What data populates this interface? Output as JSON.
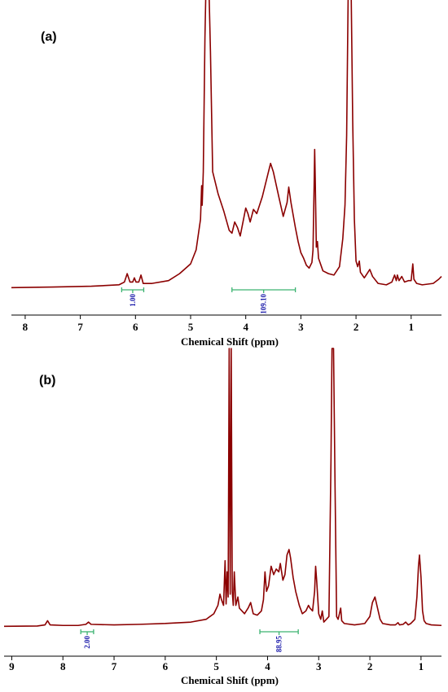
{
  "colors": {
    "spectrum": "#8b0000",
    "integration_bar": "#3cb371",
    "integration_text": "#1a1aaa",
    "axis": "#000000"
  },
  "chart_data": [
    {
      "type": "line",
      "panel_label": "(a)",
      "xlabel": "Chemical Shift (ppm)",
      "ylabel": "",
      "x_reversed": true,
      "xlim": [
        8.25,
        0.45
      ],
      "ylim": [
        0,
        100
      ],
      "tick_values": [
        8,
        7,
        6,
        5,
        4,
        3,
        2,
        1
      ],
      "tick_labels": [
        "8",
        "7",
        "6",
        "5",
        "4",
        "3",
        "2",
        "1"
      ],
      "integrations": [
        {
          "from": 6.25,
          "to": 5.85,
          "label": "1.00"
        },
        {
          "from": 4.25,
          "to": 3.1,
          "label": "109.10"
        }
      ],
      "series": [
        {
          "points": [
            [
              8.25,
              0.5
            ],
            [
              7.5,
              0.7
            ],
            [
              6.8,
              1.0
            ],
            [
              6.3,
              1.5
            ],
            [
              6.2,
              2.5
            ],
            [
              6.15,
              5.5
            ],
            [
              6.1,
              2.5
            ],
            [
              6.05,
              2.5
            ],
            [
              6.02,
              4.0
            ],
            [
              5.99,
              2.5
            ],
            [
              5.94,
              2.5
            ],
            [
              5.9,
              5.0
            ],
            [
              5.86,
              2.0
            ],
            [
              5.7,
              2.0
            ],
            [
              5.4,
              3.0
            ],
            [
              5.2,
              5.5
            ],
            [
              5.0,
              9.0
            ],
            [
              4.9,
              14.0
            ],
            [
              4.82,
              25.0
            ],
            [
              4.8,
              37.0
            ],
            [
              4.79,
              30.0
            ],
            [
              4.77,
              42.0
            ],
            [
              4.74,
              90.0
            ],
            [
              4.72,
              110.0
            ],
            [
              4.67,
              110.0
            ],
            [
              4.64,
              85.0
            ],
            [
              4.6,
              42.0
            ],
            [
              4.5,
              34.0
            ],
            [
              4.4,
              28.0
            ],
            [
              4.3,
              21.0
            ],
            [
              4.25,
              20.0
            ],
            [
              4.2,
              24.0
            ],
            [
              4.15,
              22.0
            ],
            [
              4.1,
              19.0
            ],
            [
              4.05,
              24.0
            ],
            [
              4.0,
              29.0
            ],
            [
              3.96,
              27.0
            ],
            [
              3.92,
              24.0
            ],
            [
              3.86,
              28.5
            ],
            [
              3.8,
              27.0
            ],
            [
              3.7,
              33.0
            ],
            [
              3.6,
              41.0
            ],
            [
              3.55,
              45.0
            ],
            [
              3.5,
              42.0
            ],
            [
              3.4,
              33.0
            ],
            [
              3.32,
              26.0
            ],
            [
              3.25,
              31.0
            ],
            [
              3.22,
              36.5
            ],
            [
              3.18,
              31.0
            ],
            [
              3.1,
              22.0
            ],
            [
              3.05,
              17.0
            ],
            [
              3.0,
              13.0
            ],
            [
              2.95,
              11.0
            ],
            [
              2.9,
              8.5
            ],
            [
              2.85,
              7.5
            ],
            [
              2.8,
              9.5
            ],
            [
              2.78,
              14.0
            ],
            [
              2.76,
              37.0
            ],
            [
              2.75,
              50.0
            ],
            [
              2.74,
              40.0
            ],
            [
              2.72,
              15.0
            ],
            [
              2.7,
              17.0
            ],
            [
              2.68,
              11.0
            ],
            [
              2.6,
              6.5
            ],
            [
              2.5,
              5.5
            ],
            [
              2.4,
              5.0
            ],
            [
              2.3,
              8.0
            ],
            [
              2.27,
              13.0
            ],
            [
              2.24,
              18.0
            ],
            [
              2.2,
              30.0
            ],
            [
              2.17,
              55.0
            ],
            [
              2.14,
              110.0
            ],
            [
              2.09,
              110.0
            ],
            [
              2.06,
              60.0
            ],
            [
              2.03,
              25.0
            ],
            [
              2.0,
              10.0
            ],
            [
              1.97,
              8.0
            ],
            [
              1.94,
              10.0
            ],
            [
              1.92,
              6.0
            ],
            [
              1.85,
              4.0
            ],
            [
              1.8,
              5.5
            ],
            [
              1.75,
              7.0
            ],
            [
              1.7,
              4.5
            ],
            [
              1.6,
              2.0
            ],
            [
              1.45,
              1.5
            ],
            [
              1.35,
              2.5
            ],
            [
              1.3,
              5.0
            ],
            [
              1.27,
              3.0
            ],
            [
              1.25,
              5.0
            ],
            [
              1.22,
              3.0
            ],
            [
              1.17,
              4.5
            ],
            [
              1.12,
              2.5
            ],
            [
              1.05,
              3.0
            ],
            [
              1.0,
              3.0
            ],
            [
              0.97,
              9.0
            ],
            [
              0.95,
              3.5
            ],
            [
              0.9,
              2.0
            ],
            [
              0.8,
              1.5
            ],
            [
              0.6,
              2.0
            ],
            [
              0.5,
              3.5
            ],
            [
              0.45,
              4.5
            ]
          ]
        }
      ]
    },
    {
      "type": "line",
      "panel_label": "(b)",
      "xlabel": "Chemical Shift (ppm)",
      "ylabel": "",
      "x_reversed": true,
      "xlim": [
        9.15,
        0.6
      ],
      "ylim": [
        0,
        100
      ],
      "tick_values": [
        9,
        8,
        7,
        6,
        5,
        4,
        3,
        2,
        1
      ],
      "tick_labels": [
        "9",
        "8",
        "7",
        "6",
        "5",
        "4",
        "3",
        "2",
        "1"
      ],
      "integrations": [
        {
          "from": 7.65,
          "to": 7.4,
          "label": "2.00"
        },
        {
          "from": 4.15,
          "to": 3.4,
          "label": "88.95"
        }
      ],
      "series": [
        {
          "points": [
            [
              9.15,
              0.5
            ],
            [
              8.5,
              0.6
            ],
            [
              8.35,
              1.0
            ],
            [
              8.3,
              2.5
            ],
            [
              8.25,
              1.0
            ],
            [
              8.0,
              0.8
            ],
            [
              7.7,
              0.8
            ],
            [
              7.55,
              1.2
            ],
            [
              7.5,
              2.0
            ],
            [
              7.45,
              1.2
            ],
            [
              7.0,
              1.0
            ],
            [
              6.5,
              1.2
            ],
            [
              6.0,
              1.5
            ],
            [
              5.5,
              2.0
            ],
            [
              5.2,
              3.0
            ],
            [
              5.05,
              5.0
            ],
            [
              4.97,
              8.0
            ],
            [
              4.93,
              12.0
            ],
            [
              4.9,
              10.0
            ],
            [
              4.86,
              8.0
            ],
            [
              4.83,
              24.0
            ],
            [
              4.81,
              8.5
            ],
            [
              4.79,
              20.0
            ],
            [
              4.77,
              11.0
            ],
            [
              4.75,
              100.0
            ],
            [
              4.73,
              12.0
            ],
            [
              4.71,
              100.0
            ],
            [
              4.69,
              13.0
            ],
            [
              4.67,
              8.0
            ],
            [
              4.65,
              20.0
            ],
            [
              4.62,
              8.0
            ],
            [
              4.58,
              11.0
            ],
            [
              4.55,
              7.0
            ],
            [
              4.5,
              6.0
            ],
            [
              4.45,
              5.0
            ],
            [
              4.38,
              7.0
            ],
            [
              4.33,
              9.0
            ],
            [
              4.28,
              5.0
            ],
            [
              4.2,
              4.5
            ],
            [
              4.12,
              6.0
            ],
            [
              4.08,
              10.0
            ],
            [
              4.05,
              20.0
            ],
            [
              4.02,
              13.0
            ],
            [
              3.98,
              15.0
            ],
            [
              3.93,
              22.0
            ],
            [
              3.88,
              19.0
            ],
            [
              3.83,
              21.0
            ],
            [
              3.78,
              20.0
            ],
            [
              3.75,
              23.0
            ],
            [
              3.7,
              17.0
            ],
            [
              3.66,
              19.0
            ],
            [
              3.62,
              26.0
            ],
            [
              3.58,
              28.0
            ],
            [
              3.55,
              25.0
            ],
            [
              3.5,
              18.0
            ],
            [
              3.45,
              13.0
            ],
            [
              3.38,
              8.0
            ],
            [
              3.32,
              5.0
            ],
            [
              3.25,
              6.0
            ],
            [
              3.2,
              8.0
            ],
            [
              3.17,
              7.0
            ],
            [
              3.12,
              6.0
            ],
            [
              3.08,
              13.0
            ],
            [
              3.06,
              22.0
            ],
            [
              3.04,
              17.0
            ],
            [
              3.0,
              5.0
            ],
            [
              2.96,
              3.0
            ],
            [
              2.93,
              6.0
            ],
            [
              2.9,
              2.0
            ],
            [
              2.85,
              3.0
            ],
            [
              2.8,
              4.0
            ],
            [
              2.76,
              60.0
            ],
            [
              2.74,
              100.0
            ],
            [
              2.71,
              100.0
            ],
            [
              2.68,
              50.0
            ],
            [
              2.65,
              4.0
            ],
            [
              2.62,
              3.0
            ],
            [
              2.57,
              7.0
            ],
            [
              2.55,
              2.5
            ],
            [
              2.5,
              1.5
            ],
            [
              2.3,
              1.0
            ],
            [
              2.1,
              1.5
            ],
            [
              2.0,
              4.0
            ],
            [
              1.95,
              9.0
            ],
            [
              1.9,
              11.0
            ],
            [
              1.85,
              7.0
            ],
            [
              1.8,
              3.0
            ],
            [
              1.75,
              1.5
            ],
            [
              1.6,
              1.0
            ],
            [
              1.5,
              1.0
            ],
            [
              1.45,
              1.8
            ],
            [
              1.42,
              1.0
            ],
            [
              1.35,
              1.2
            ],
            [
              1.3,
              2.0
            ],
            [
              1.25,
              1.0
            ],
            [
              1.2,
              1.5
            ],
            [
              1.12,
              3.0
            ],
            [
              1.08,
              11.0
            ],
            [
              1.05,
              22.0
            ],
            [
              1.03,
              26.0
            ],
            [
              1.0,
              18.0
            ],
            [
              0.97,
              6.0
            ],
            [
              0.94,
              2.5
            ],
            [
              0.9,
              1.5
            ],
            [
              0.8,
              1.0
            ],
            [
              0.6,
              0.8
            ]
          ]
        }
      ]
    }
  ]
}
